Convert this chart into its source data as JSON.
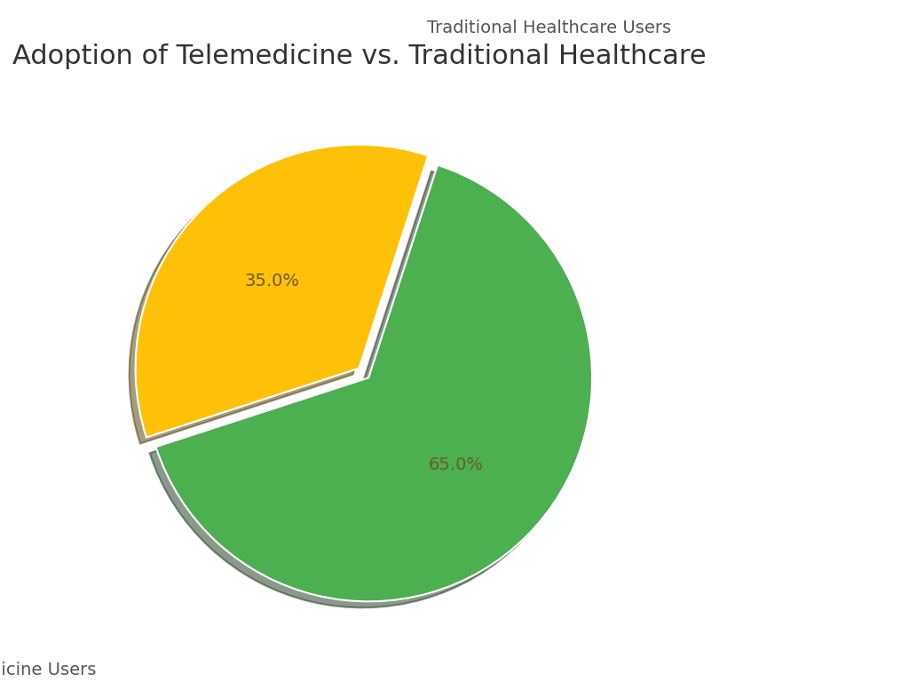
{
  "title": "Adoption of Telemedicine vs. Traditional Healthcare",
  "slices": [
    65.0,
    35.0
  ],
  "labels": [
    "Telemedicine Users",
    "Traditional Healthcare Users"
  ],
  "colors": [
    "#4CAF50",
    "#FFC107"
  ],
  "explode": [
    0.06,
    0.0
  ],
  "startangle": 198,
  "title_fontsize": 22,
  "label_fontsize": 14,
  "pct_fontsize": 14,
  "background_color": "#FFFFFF",
  "label_color": "#555555",
  "pct_color": "#6B5B2E"
}
